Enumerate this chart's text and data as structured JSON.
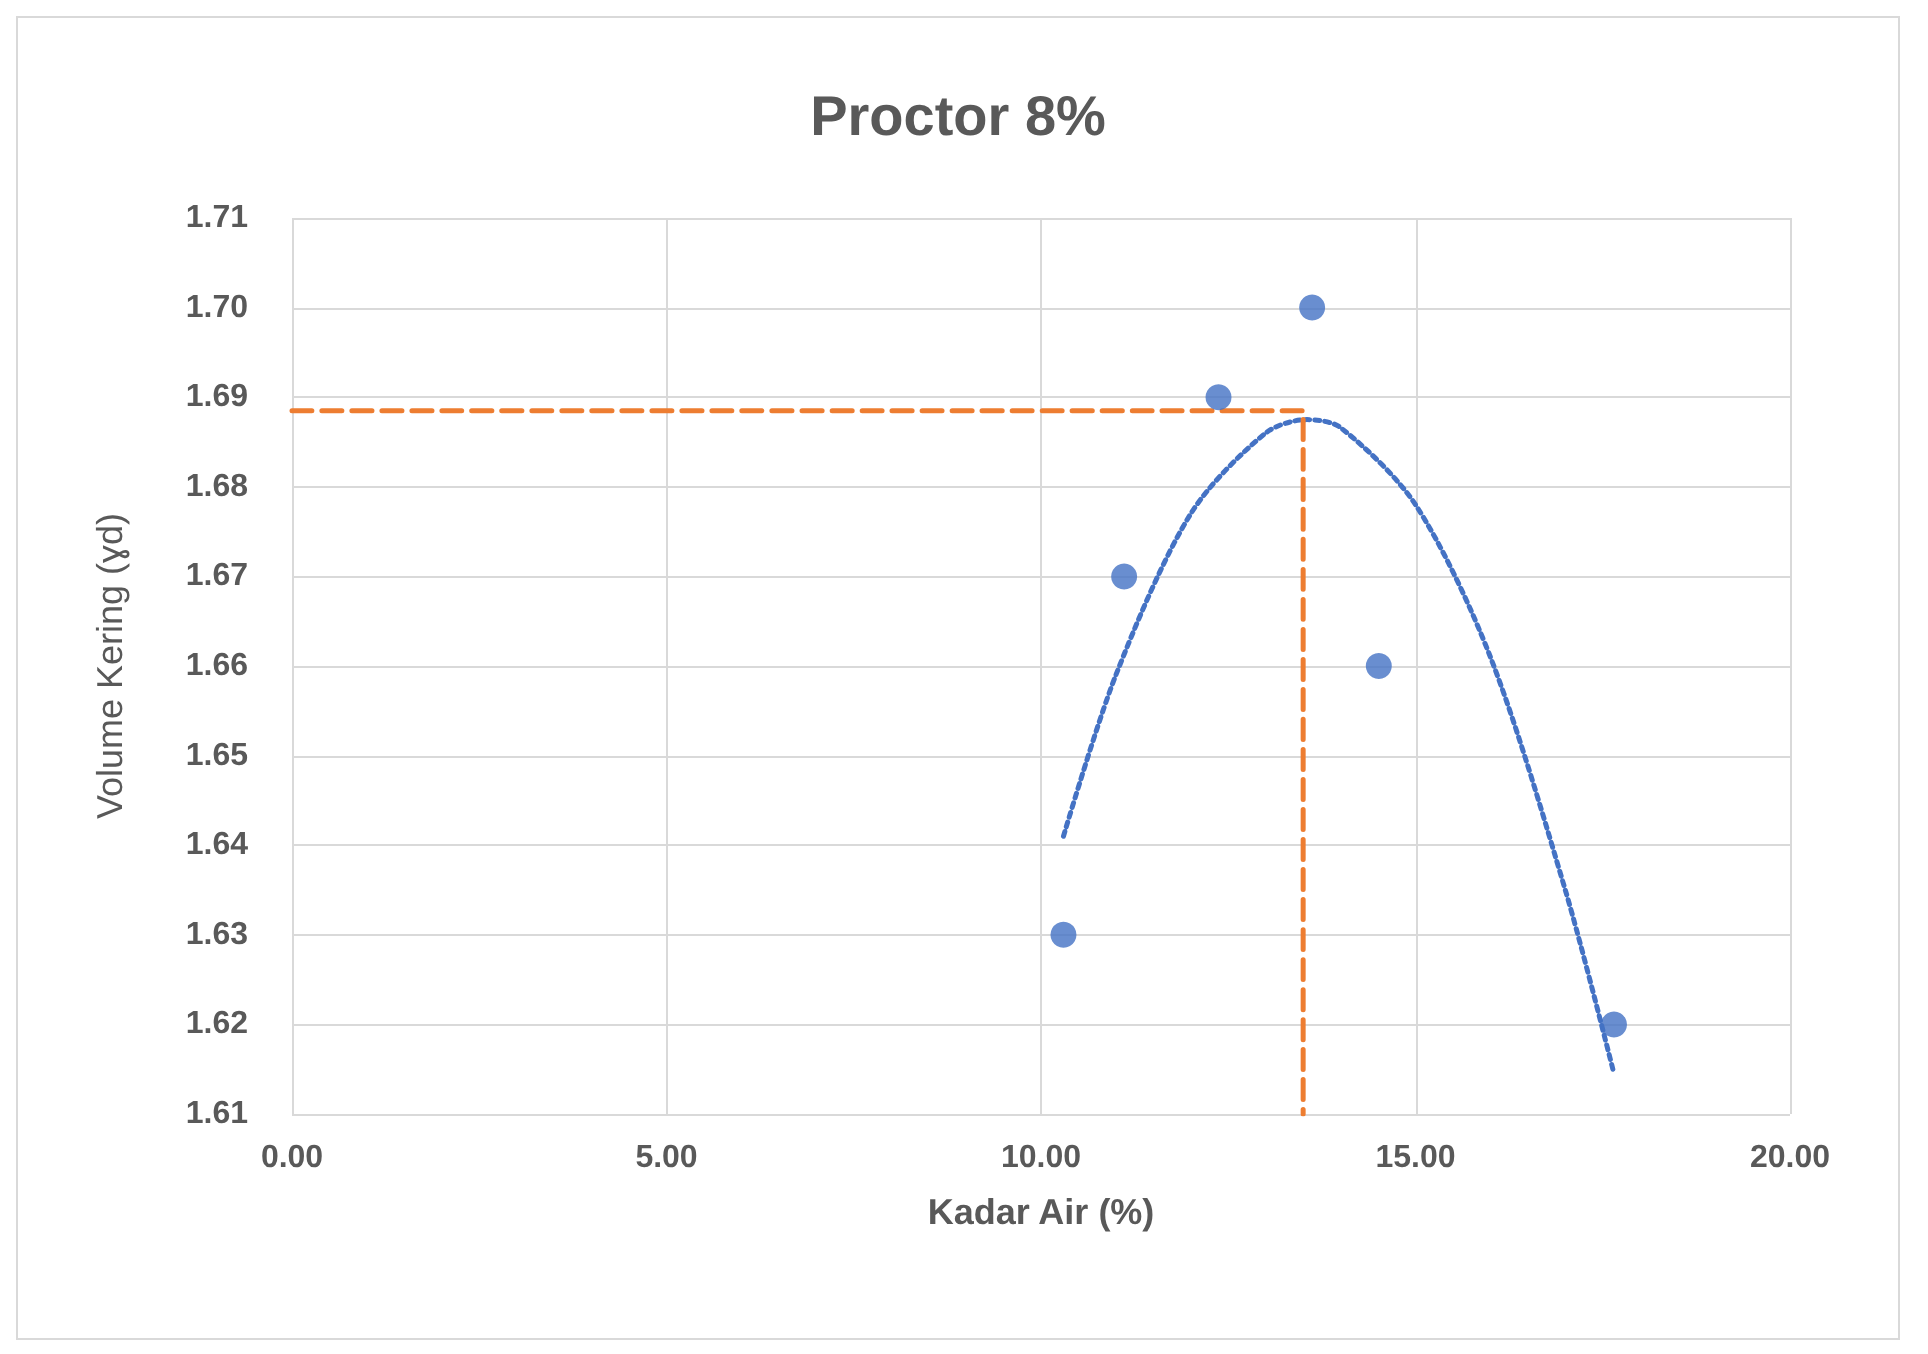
{
  "chart_data": {
    "type": "scatter",
    "title": "Proctor 8%",
    "xlabel": "Kadar Air (%)",
    "ylabel": "Volume Kering (ɣd)",
    "xlim": [
      0,
      20
    ],
    "xticks": [
      {
        "value": 0,
        "label": "0.00"
      },
      {
        "value": 5,
        "label": "5.00"
      },
      {
        "value": 10,
        "label": "10.00"
      },
      {
        "value": 15,
        "label": "15.00"
      },
      {
        "value": 20,
        "label": "20.00"
      }
    ],
    "ylim": [
      1.61,
      1.71
    ],
    "yticks": [
      {
        "value": 1.61,
        "label": "1.61"
      },
      {
        "value": 1.62,
        "label": "1.62"
      },
      {
        "value": 1.63,
        "label": "1.63"
      },
      {
        "value": 1.64,
        "label": "1.64"
      },
      {
        "value": 1.65,
        "label": "1.65"
      },
      {
        "value": 1.66,
        "label": "1.66"
      },
      {
        "value": 1.67,
        "label": "1.67"
      },
      {
        "value": 1.68,
        "label": "1.68"
      },
      {
        "value": 1.69,
        "label": "1.69"
      },
      {
        "value": 1.7,
        "label": "1.70"
      },
      {
        "value": 1.71,
        "label": "1.71"
      }
    ],
    "grid": true,
    "series": [
      {
        "color": "#4472c4",
        "marker": "circle",
        "x": [
          10.3,
          11.11,
          12.37,
          13.62,
          14.51,
          17.65
        ],
        "values": [
          1.63,
          1.67,
          1.69,
          1.7,
          1.66,
          1.62
        ]
      },
      {
        "type": "line",
        "color": "#4472c4",
        "marker": "none",
        "line_style": "dotted",
        "x": [
          10.3,
          11,
          12,
          13,
          13.55,
          14,
          15,
          16,
          17,
          17.65
        ],
        "values": [
          1.641,
          1.659,
          1.677,
          1.686,
          1.6875,
          1.6866,
          1.678,
          1.661,
          1.635,
          1.6145
        ]
      },
      {
        "type": "line",
        "color": "#ed7d31",
        "marker": "none",
        "line_style": "dashed",
        "x": [
          0,
          13.5,
          13.5
        ],
        "values": [
          1.6885,
          1.6885,
          1.61
        ]
      }
    ]
  }
}
